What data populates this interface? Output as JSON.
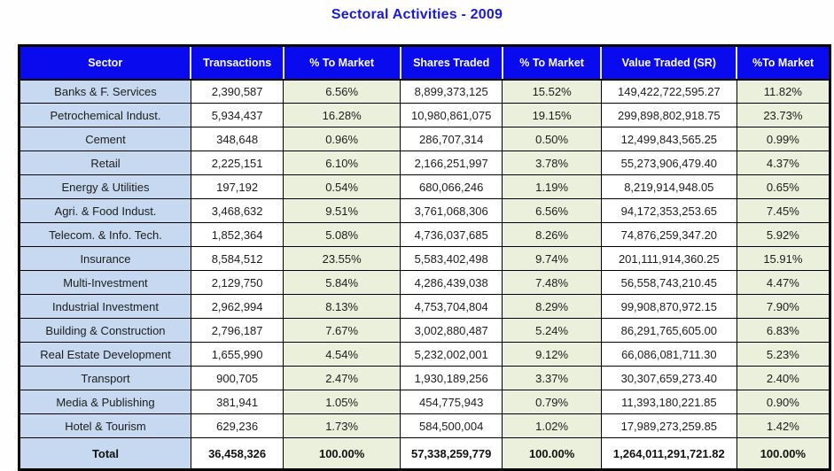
{
  "title": "Sectoral Activities - 2009",
  "colors": {
    "title_text": "#1a1ad8",
    "header_bg": "#0a0aee",
    "header_text": "#ffffff",
    "sector_col_bg": "#c7d9f0",
    "numeric_col_bg": "#ffffff",
    "percent_col_bg": "#eaf0dc",
    "border": "#000000"
  },
  "table": {
    "columns": [
      "Sector",
      "Transactions",
      "% To Market",
      "Shares Traded",
      "% To Market",
      "Value Traded (SR)",
      "%To Market"
    ],
    "rows": [
      [
        "Banks & F. Services",
        "2,390,587",
        "6.56%",
        "8,899,373,125",
        "15.52%",
        "149,422,722,595.27",
        "11.82%"
      ],
      [
        "Petrochemical Indust.",
        "5,934,437",
        "16.28%",
        "10,980,861,075",
        "19.15%",
        "299,898,802,918.75",
        "23.73%"
      ],
      [
        "Cement",
        "348,648",
        "0.96%",
        "286,707,314",
        "0.50%",
        "12,499,843,565.25",
        "0.99%"
      ],
      [
        "Retail",
        "2,225,151",
        "6.10%",
        "2,166,251,997",
        "3.78%",
        "55,273,906,479.40",
        "4.37%"
      ],
      [
        "Energy & Utilities",
        "197,192",
        "0.54%",
        "680,066,246",
        "1.19%",
        "8,219,914,948.05",
        "0.65%"
      ],
      [
        "Agri. & Food Indust.",
        "3,468,632",
        "9.51%",
        "3,761,068,306",
        "6.56%",
        "94,172,353,253.65",
        "7.45%"
      ],
      [
        "Telecom. & Info. Tech.",
        "1,852,364",
        "5.08%",
        "4,736,037,685",
        "8.26%",
        "74,876,259,347.20",
        "5.92%"
      ],
      [
        "Insurance",
        "8,584,512",
        "23.55%",
        "5,583,402,498",
        "9.74%",
        "201,111,914,360.25",
        "15.91%"
      ],
      [
        "Multi-Investment",
        "2,129,750",
        "5.84%",
        "4,286,439,038",
        "7.48%",
        "56,558,743,210.45",
        "4.47%"
      ],
      [
        "Industrial Investment",
        "2,962,994",
        "8.13%",
        "4,753,704,804",
        "8.29%",
        "99,908,870,972.15",
        "7.90%"
      ],
      [
        "Building & Construction",
        "2,796,187",
        "7.67%",
        "3,002,880,487",
        "5.24%",
        "86,291,765,605.00",
        "6.83%"
      ],
      [
        "Real Estate Development",
        "1,655,990",
        "4.54%",
        "5,232,002,001",
        "9.12%",
        "66,086,081,711.30",
        "5.23%"
      ],
      [
        "Transport",
        "900,705",
        "2.47%",
        "1,930,189,256",
        "3.37%",
        "30,307,659,273.40",
        "2.40%"
      ],
      [
        "Media & Publishing",
        "381,941",
        "1.05%",
        "454,775,943",
        "0.79%",
        "11,393,180,221.85",
        "0.90%"
      ],
      [
        "Hotel & Tourism",
        "629,236",
        "1.73%",
        "584,500,004",
        "1.02%",
        "17,989,273,259.85",
        "1.42%"
      ]
    ],
    "total": [
      "Total",
      "36,458,326",
      "100.00%",
      "57,338,259,779",
      "100.00%",
      "1,264,011,291,721.82",
      "100.00%"
    ]
  }
}
